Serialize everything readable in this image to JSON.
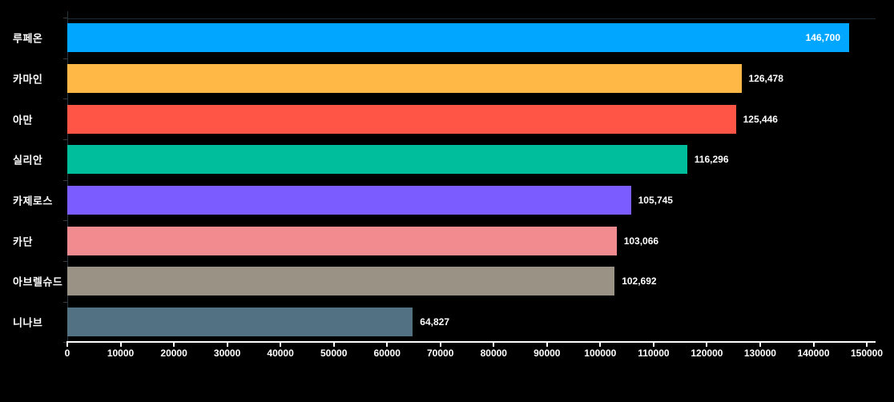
{
  "chart_data": {
    "type": "bar",
    "orientation": "horizontal",
    "title": "",
    "xlabel": "",
    "ylabel": "",
    "categories": [
      "루페온",
      "카마인",
      "아만",
      "실리안",
      "카제로스",
      "카단",
      "아브렐슈드",
      "니나브"
    ],
    "values": [
      146700,
      126478,
      125446,
      116296,
      105745,
      103066,
      102692,
      64827
    ],
    "value_labels": [
      "146,700",
      "126,478",
      "125,446",
      "116,296",
      "105,745",
      "103,066",
      "102,692",
      "64,827"
    ],
    "value_label_placement": [
      "inside",
      "outside",
      "outside",
      "outside",
      "outside",
      "outside",
      "outside",
      "outside"
    ],
    "bar_colors": [
      "#00A6FF",
      "#FFB845",
      "#FF5546",
      "#00BD9C",
      "#7A5CFF",
      "#F28B90",
      "#9A9284",
      "#527183"
    ],
    "xlim": [
      0,
      150000
    ],
    "x_tick_interval": 10000,
    "x_tick_labels": [
      "0",
      "10000",
      "20000",
      "30000",
      "40000",
      "50000",
      "60000",
      "70000",
      "80000",
      "90000",
      "100000",
      "110000",
      "120000",
      "130000",
      "140000",
      "150000"
    ],
    "grid": false,
    "legend": false,
    "background_color": "#000000",
    "axis_color": "#FFFFFF",
    "text_color": "#FFFFFF"
  }
}
